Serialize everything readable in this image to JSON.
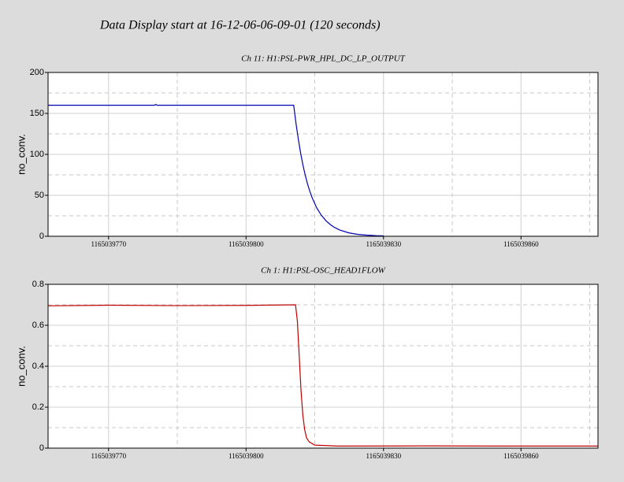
{
  "title": "Data Display start at 16-12-06-06-09-01 (120 seconds)",
  "chart_data": [
    {
      "type": "line",
      "title": "Ch 11: H1:PSL-PWR_HPL_DC_LP_OUTPUT",
      "y_label": "no_conv.",
      "color": "#0000b0",
      "x": [
        1165039756.8,
        1165039780,
        1165039780.3,
        1165039780.6,
        1165039810.4,
        1165039810.9,
        1165039811.4,
        1165039811.9,
        1165039812.4,
        1165039812.9,
        1165039813.4,
        1165039813.9,
        1165039814.4,
        1165039815.4,
        1165039816.4,
        1165039817.4,
        1165039818.4,
        1165039819.4,
        1165039820.4,
        1165039822.4,
        1165039824.4,
        1165039826.4,
        1165039828.4,
        1165039830.0
      ],
      "values": [
        160,
        160,
        161,
        160,
        160,
        137.9,
        118.9,
        101.9,
        87.4,
        75.0,
        64.3,
        55.2,
        47.4,
        34.9,
        25.9,
        19.2,
        14.2,
        10.5,
        7.8,
        4.2,
        2.3,
        1.3,
        0.7,
        0.5
      ],
      "xlim": [
        1165039756.8,
        1165039876.8
      ],
      "xticks": [
        1165039770,
        1165039800,
        1165039830,
        1165039860
      ],
      "minor_xticks": [
        1165039785,
        1165039815,
        1165039845,
        1165039875
      ],
      "ylim": [
        0,
        200
      ],
      "yticks": [
        0,
        50,
        100,
        150,
        200
      ],
      "minor_yticks": [
        25,
        75,
        125,
        175
      ],
      "grid": true
    },
    {
      "type": "line",
      "title": "Ch 1: H1:PSL-OSC_HEAD1FLOW",
      "y_label": "no_conv.",
      "color": "#c00000",
      "x": [
        1165039756.8,
        1165039770,
        1165039785,
        1165039800,
        1165039810.8,
        1165039811.2,
        1165039811.6,
        1165039812.0,
        1165039812.4,
        1165039812.8,
        1165039813.2,
        1165039813.8,
        1165039815,
        1165039820,
        1165039840,
        1165039860,
        1165039876.8
      ],
      "values": [
        0.695,
        0.698,
        0.696,
        0.697,
        0.7,
        0.62,
        0.45,
        0.28,
        0.16,
        0.09,
        0.05,
        0.03,
        0.015,
        0.01,
        0.011,
        0.01,
        0.01
      ],
      "xlim": [
        1165039756.8,
        1165039876.8
      ],
      "xticks": [
        1165039770,
        1165039800,
        1165039830,
        1165039860
      ],
      "minor_xticks": [
        1165039785,
        1165039815,
        1165039845,
        1165039875
      ],
      "ylim": [
        0,
        0.8
      ],
      "yticks": [
        0,
        0.2,
        0.4,
        0.6,
        0.8
      ],
      "minor_yticks": [
        0.1,
        0.3,
        0.5,
        0.7
      ],
      "grid": true
    }
  ]
}
